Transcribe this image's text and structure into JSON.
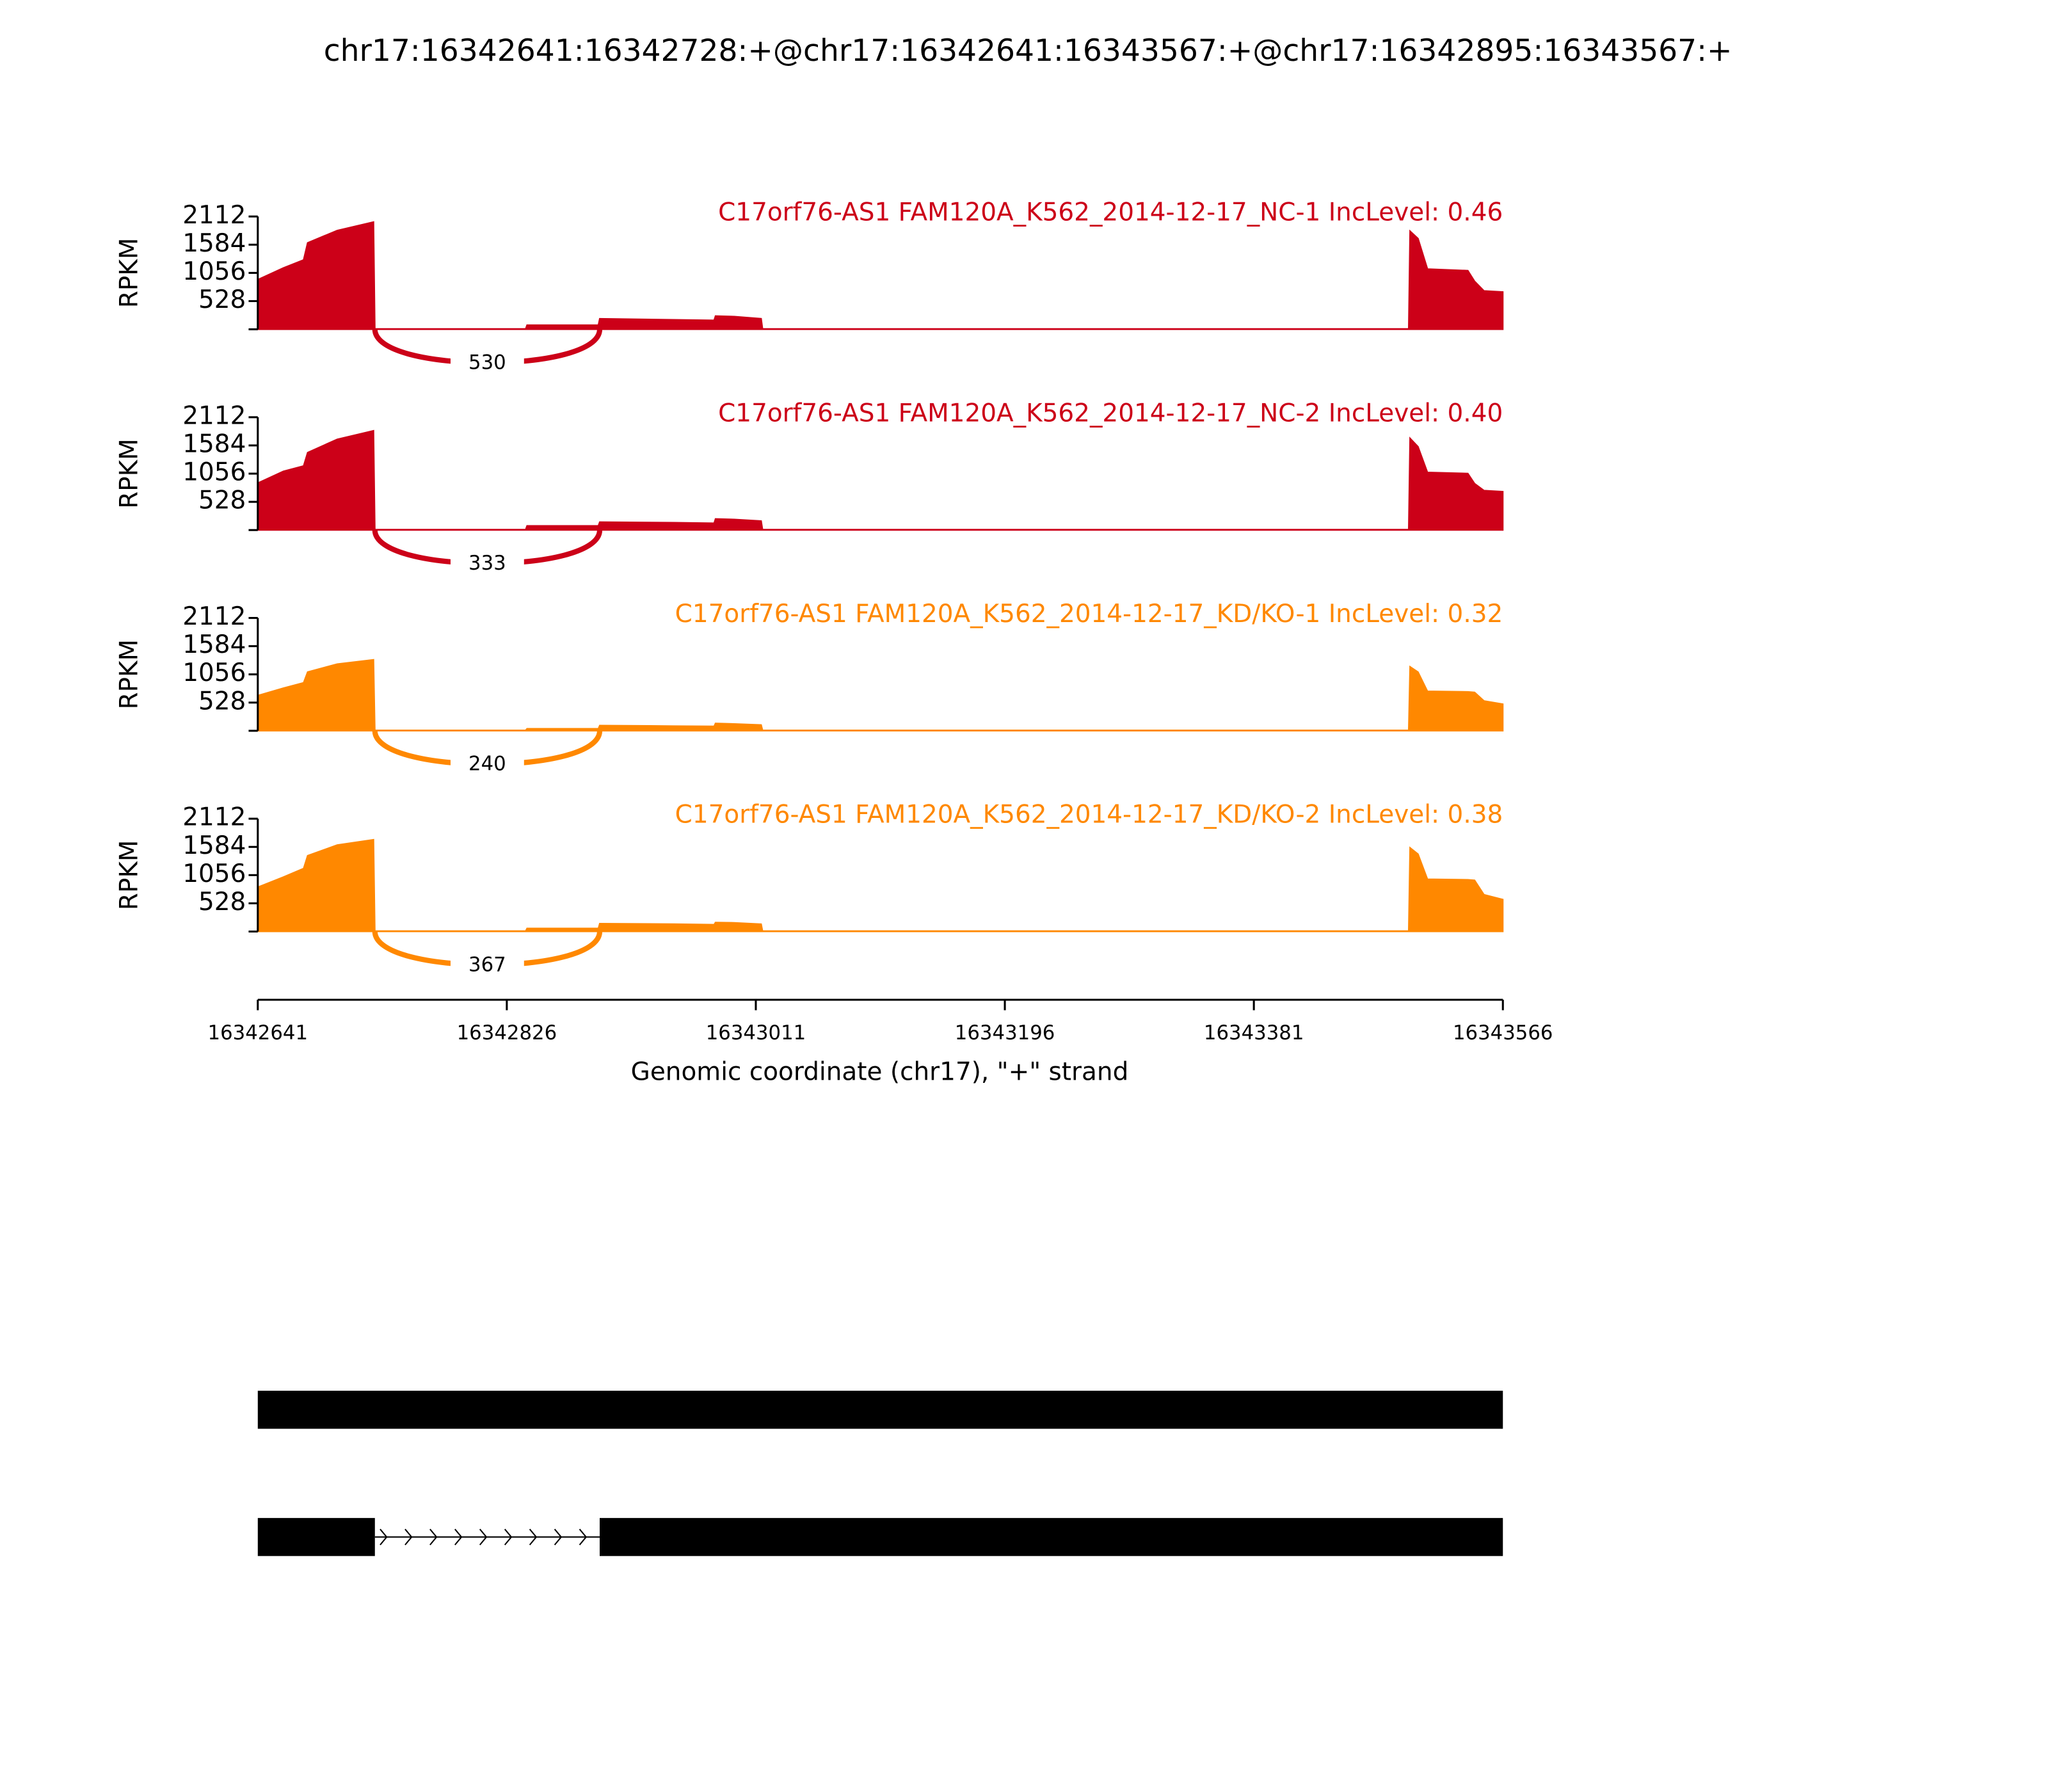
{
  "chart_data": {
    "type": "sashimi",
    "title": "chr17:16342641:16342728:+@chr17:16342641:16343567:+@chr17:16342895:16343567:+",
    "xlabel": "Genomic coordinate (chr17), \"+\" strand",
    "ylabel": "RPKM",
    "xlim": [
      16342641,
      16343566
    ],
    "xticks": [
      16342641,
      16342826,
      16343011,
      16343196,
      16343381,
      16343566
    ],
    "ylim": [
      0,
      2112
    ],
    "yticks": [
      528,
      1056,
      1584,
      2112
    ],
    "x": [
      16342641,
      16342660,
      16342675,
      16342678,
      16342700,
      16342727,
      16342728,
      16342840,
      16342841,
      16342894,
      16342895,
      16342950,
      16342980,
      16342981,
      16342995,
      16343015,
      16343016,
      16343496,
      16343497,
      16343503,
      16343510,
      16343540,
      16343545,
      16343552,
      16343566
    ],
    "series": [
      {
        "name": "C17orf76-AS1 FAM120A_K562_2014-12-17_NC-1 IncLevel: 0.46",
        "color": "#cc0018",
        "values": [
          930,
          1150,
          1300,
          1620,
          1850,
          2010,
          10,
          10,
          80,
          80,
          200,
          180,
          170,
          250,
          240,
          200,
          10,
          10,
          1840,
          1700,
          1130,
          1100,
          900,
          720,
          700
        ],
        "junction": {
          "start": 16342728,
          "end": 16342895,
          "count": 530
        }
      },
      {
        "name": "C17orf76-AS1 FAM120A_K562_2014-12-17_NC-2 IncLevel: 0.40",
        "color": "#cc0018",
        "values": [
          880,
          1100,
          1200,
          1450,
          1700,
          1860,
          10,
          10,
          80,
          80,
          150,
          140,
          130,
          210,
          200,
          170,
          10,
          10,
          1720,
          1560,
          1080,
          1060,
          870,
          740,
          720
        ],
        "junction": {
          "start": 16342728,
          "end": 16342895,
          "count": 333
        }
      },
      {
        "name": "C17orf76-AS1 FAM120A_K562_2014-12-17_KD/KO-1 IncLevel: 0.32",
        "color": "#ff8800",
        "values": [
          660,
          800,
          900,
          1100,
          1250,
          1330,
          10,
          10,
          40,
          40,
          100,
          90,
          85,
          140,
          130,
          110,
          10,
          10,
          1200,
          1100,
          740,
          730,
          720,
          560,
          500
        ],
        "junction": {
          "start": 16342728,
          "end": 16342895,
          "count": 240
        }
      },
      {
        "name": "C17orf76-AS1 FAM120A_K562_2014-12-17_KD/KO-2 IncLevel: 0.38",
        "color": "#ff8800",
        "values": [
          830,
          1020,
          1180,
          1420,
          1620,
          1720,
          10,
          10,
          60,
          60,
          150,
          140,
          130,
          170,
          165,
          140,
          10,
          10,
          1570,
          1450,
          980,
          970,
          960,
          690,
          600
        ],
        "junction": {
          "start": 16342728,
          "end": 16342895,
          "count": 367
        }
      }
    ],
    "transcripts": [
      {
        "exons": [
          [
            16342641,
            16343566
          ]
        ]
      },
      {
        "exons": [
          [
            16342641,
            16342728
          ],
          [
            16342895,
            16343566
          ]
        ]
      }
    ]
  }
}
